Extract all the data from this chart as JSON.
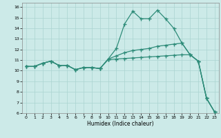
{
  "xlabel": "Humidex (Indice chaleur)",
  "background_color": "#cceae8",
  "grid_color": "#aad4d0",
  "line_color": "#2d8b78",
  "xlim": [
    -0.5,
    23.5
  ],
  "ylim": [
    6,
    16.4
  ],
  "xticks": [
    0,
    1,
    2,
    3,
    4,
    5,
    6,
    7,
    8,
    9,
    10,
    11,
    12,
    13,
    14,
    15,
    16,
    17,
    18,
    19,
    20,
    21,
    22,
    23
  ],
  "yticks": [
    6,
    7,
    8,
    9,
    10,
    11,
    12,
    13,
    14,
    15,
    16
  ],
  "curve1_x": [
    0,
    1,
    2,
    3,
    4,
    5,
    6,
    7,
    8,
    9,
    10,
    11,
    12,
    13,
    14,
    15,
    16,
    17,
    18,
    19,
    20,
    21,
    22,
    23
  ],
  "curve1_y": [
    10.4,
    10.4,
    10.7,
    10.9,
    10.5,
    10.5,
    10.1,
    10.3,
    10.3,
    10.2,
    11.1,
    12.1,
    14.4,
    15.6,
    14.9,
    14.9,
    15.7,
    14.9,
    14.0,
    12.6,
    11.5,
    10.9,
    7.4,
    6.1
  ],
  "curve2_x": [
    0,
    1,
    2,
    3,
    4,
    5,
    6,
    7,
    8,
    9,
    10,
    11,
    12,
    13,
    14,
    15,
    16,
    17,
    18,
    19,
    20,
    21,
    22,
    23
  ],
  "curve2_y": [
    10.4,
    10.4,
    10.7,
    10.9,
    10.5,
    10.5,
    10.1,
    10.3,
    10.3,
    10.2,
    11.1,
    11.4,
    11.7,
    11.9,
    12.0,
    12.1,
    12.3,
    12.4,
    12.5,
    12.6,
    11.5,
    10.9,
    7.4,
    6.1
  ],
  "curve3_x": [
    0,
    1,
    2,
    3,
    4,
    5,
    6,
    7,
    8,
    9,
    10,
    11,
    12,
    13,
    14,
    15,
    16,
    17,
    18,
    19,
    20,
    21,
    22,
    23
  ],
  "curve3_y": [
    10.4,
    10.4,
    10.7,
    10.9,
    10.5,
    10.5,
    10.1,
    10.3,
    10.3,
    10.2,
    11.05,
    11.1,
    11.15,
    11.2,
    11.25,
    11.3,
    11.35,
    11.4,
    11.45,
    11.5,
    11.5,
    10.9,
    7.4,
    6.1
  ]
}
